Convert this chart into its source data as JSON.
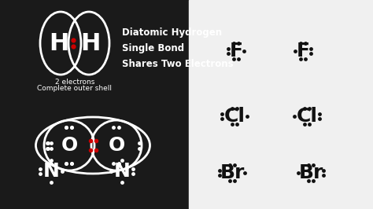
{
  "bg_left": "#1a1a1a",
  "bg_right": "#f0f0f0",
  "black": "#111111",
  "white": "#ffffff",
  "red": "#cc0000",
  "title": "Diatomic Hydrogen\nSingle Bond\nShares Two Electrons",
  "subtitle1": "2 electrons",
  "subtitle2": "Complete outer shell"
}
